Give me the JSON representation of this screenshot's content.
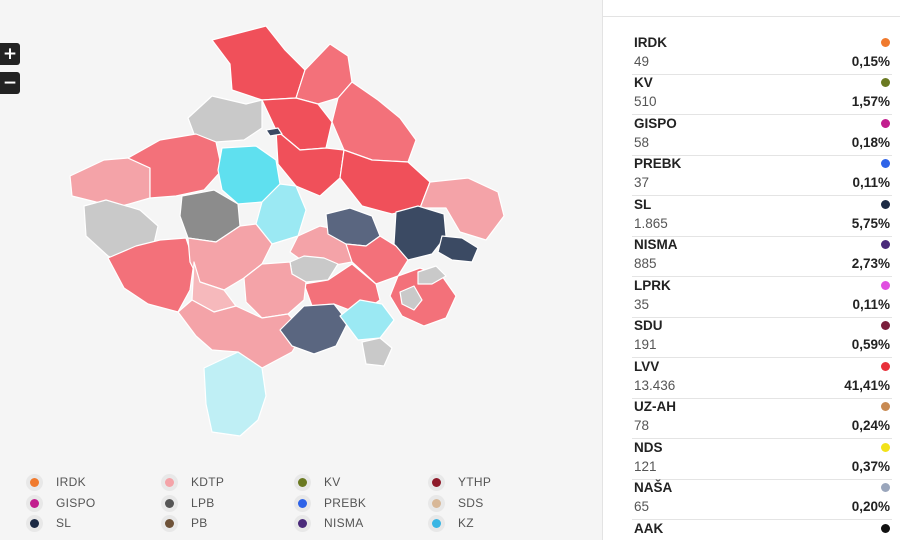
{
  "map": {
    "zoom_in_label": "+",
    "zoom_out_label": "−",
    "colors": {
      "strong_red": "#f0505a",
      "mid_red": "#f3717a",
      "light_red": "#f4a3a8",
      "pale_red": "#f6b9bc",
      "grey": "#c9c9c9",
      "dark_grey": "#8c8c8c",
      "dark_slate": "#3b4a63",
      "slate": "#5a6680",
      "cyan": "#5fe0ef",
      "light_cyan": "#9be9f3",
      "pale_cyan": "#bfeff5"
    }
  },
  "legend": [
    {
      "label": "IRDK",
      "color": "#f07a2e"
    },
    {
      "label": "KDTP",
      "color": "#f4a3a8"
    },
    {
      "label": "KV",
      "color": "#6b7a22"
    },
    {
      "label": "YTHP",
      "color": "#8e1a2a"
    },
    {
      "label": "GISPO",
      "color": "#c21e8e"
    },
    {
      "label": "LPB",
      "color": "#555555"
    },
    {
      "label": "PREBK",
      "color": "#2e63e8"
    },
    {
      "label": "SDS",
      "color": "#d8b898"
    },
    {
      "label": "SL",
      "color": "#1c2a44"
    },
    {
      "label": "PB",
      "color": "#6e5238"
    },
    {
      "label": "NISMA",
      "color": "#4a2a7a"
    },
    {
      "label": "KZ",
      "color": "#3ab6e4"
    }
  ],
  "results": [
    {
      "name": "IRDK",
      "votes": "49",
      "pct": "0,15%",
      "color": "#f07a2e"
    },
    {
      "name": "KV",
      "votes": "510",
      "pct": "1,57%",
      "color": "#6b7a22"
    },
    {
      "name": "GISPO",
      "votes": "58",
      "pct": "0,18%",
      "color": "#c21e8e"
    },
    {
      "name": "PREBK",
      "votes": "37",
      "pct": "0,11%",
      "color": "#2e63e8"
    },
    {
      "name": "SL",
      "votes": "1.865",
      "pct": "5,75%",
      "color": "#1c2a44"
    },
    {
      "name": "NISMA",
      "votes": "885",
      "pct": "2,73%",
      "color": "#4a2a7a"
    },
    {
      "name": "LPRK",
      "votes": "35",
      "pct": "0,11%",
      "color": "#e04ee0"
    },
    {
      "name": "SDU",
      "votes": "191",
      "pct": "0,59%",
      "color": "#7a1f3c"
    },
    {
      "name": "LVV",
      "votes": "13.436",
      "pct": "41,41%",
      "color": "#e8303a"
    },
    {
      "name": "UZ-AH",
      "votes": "78",
      "pct": "0,24%",
      "color": "#c88a52"
    },
    {
      "name": "NDS",
      "votes": "121",
      "pct": "0,37%",
      "color": "#f2e21a"
    },
    {
      "name": "NAŠA",
      "votes": "65",
      "pct": "0,20%",
      "color": "#9aa6bc"
    },
    {
      "name": "AAK",
      "votes": "",
      "pct": "",
      "color": "#111111"
    }
  ]
}
